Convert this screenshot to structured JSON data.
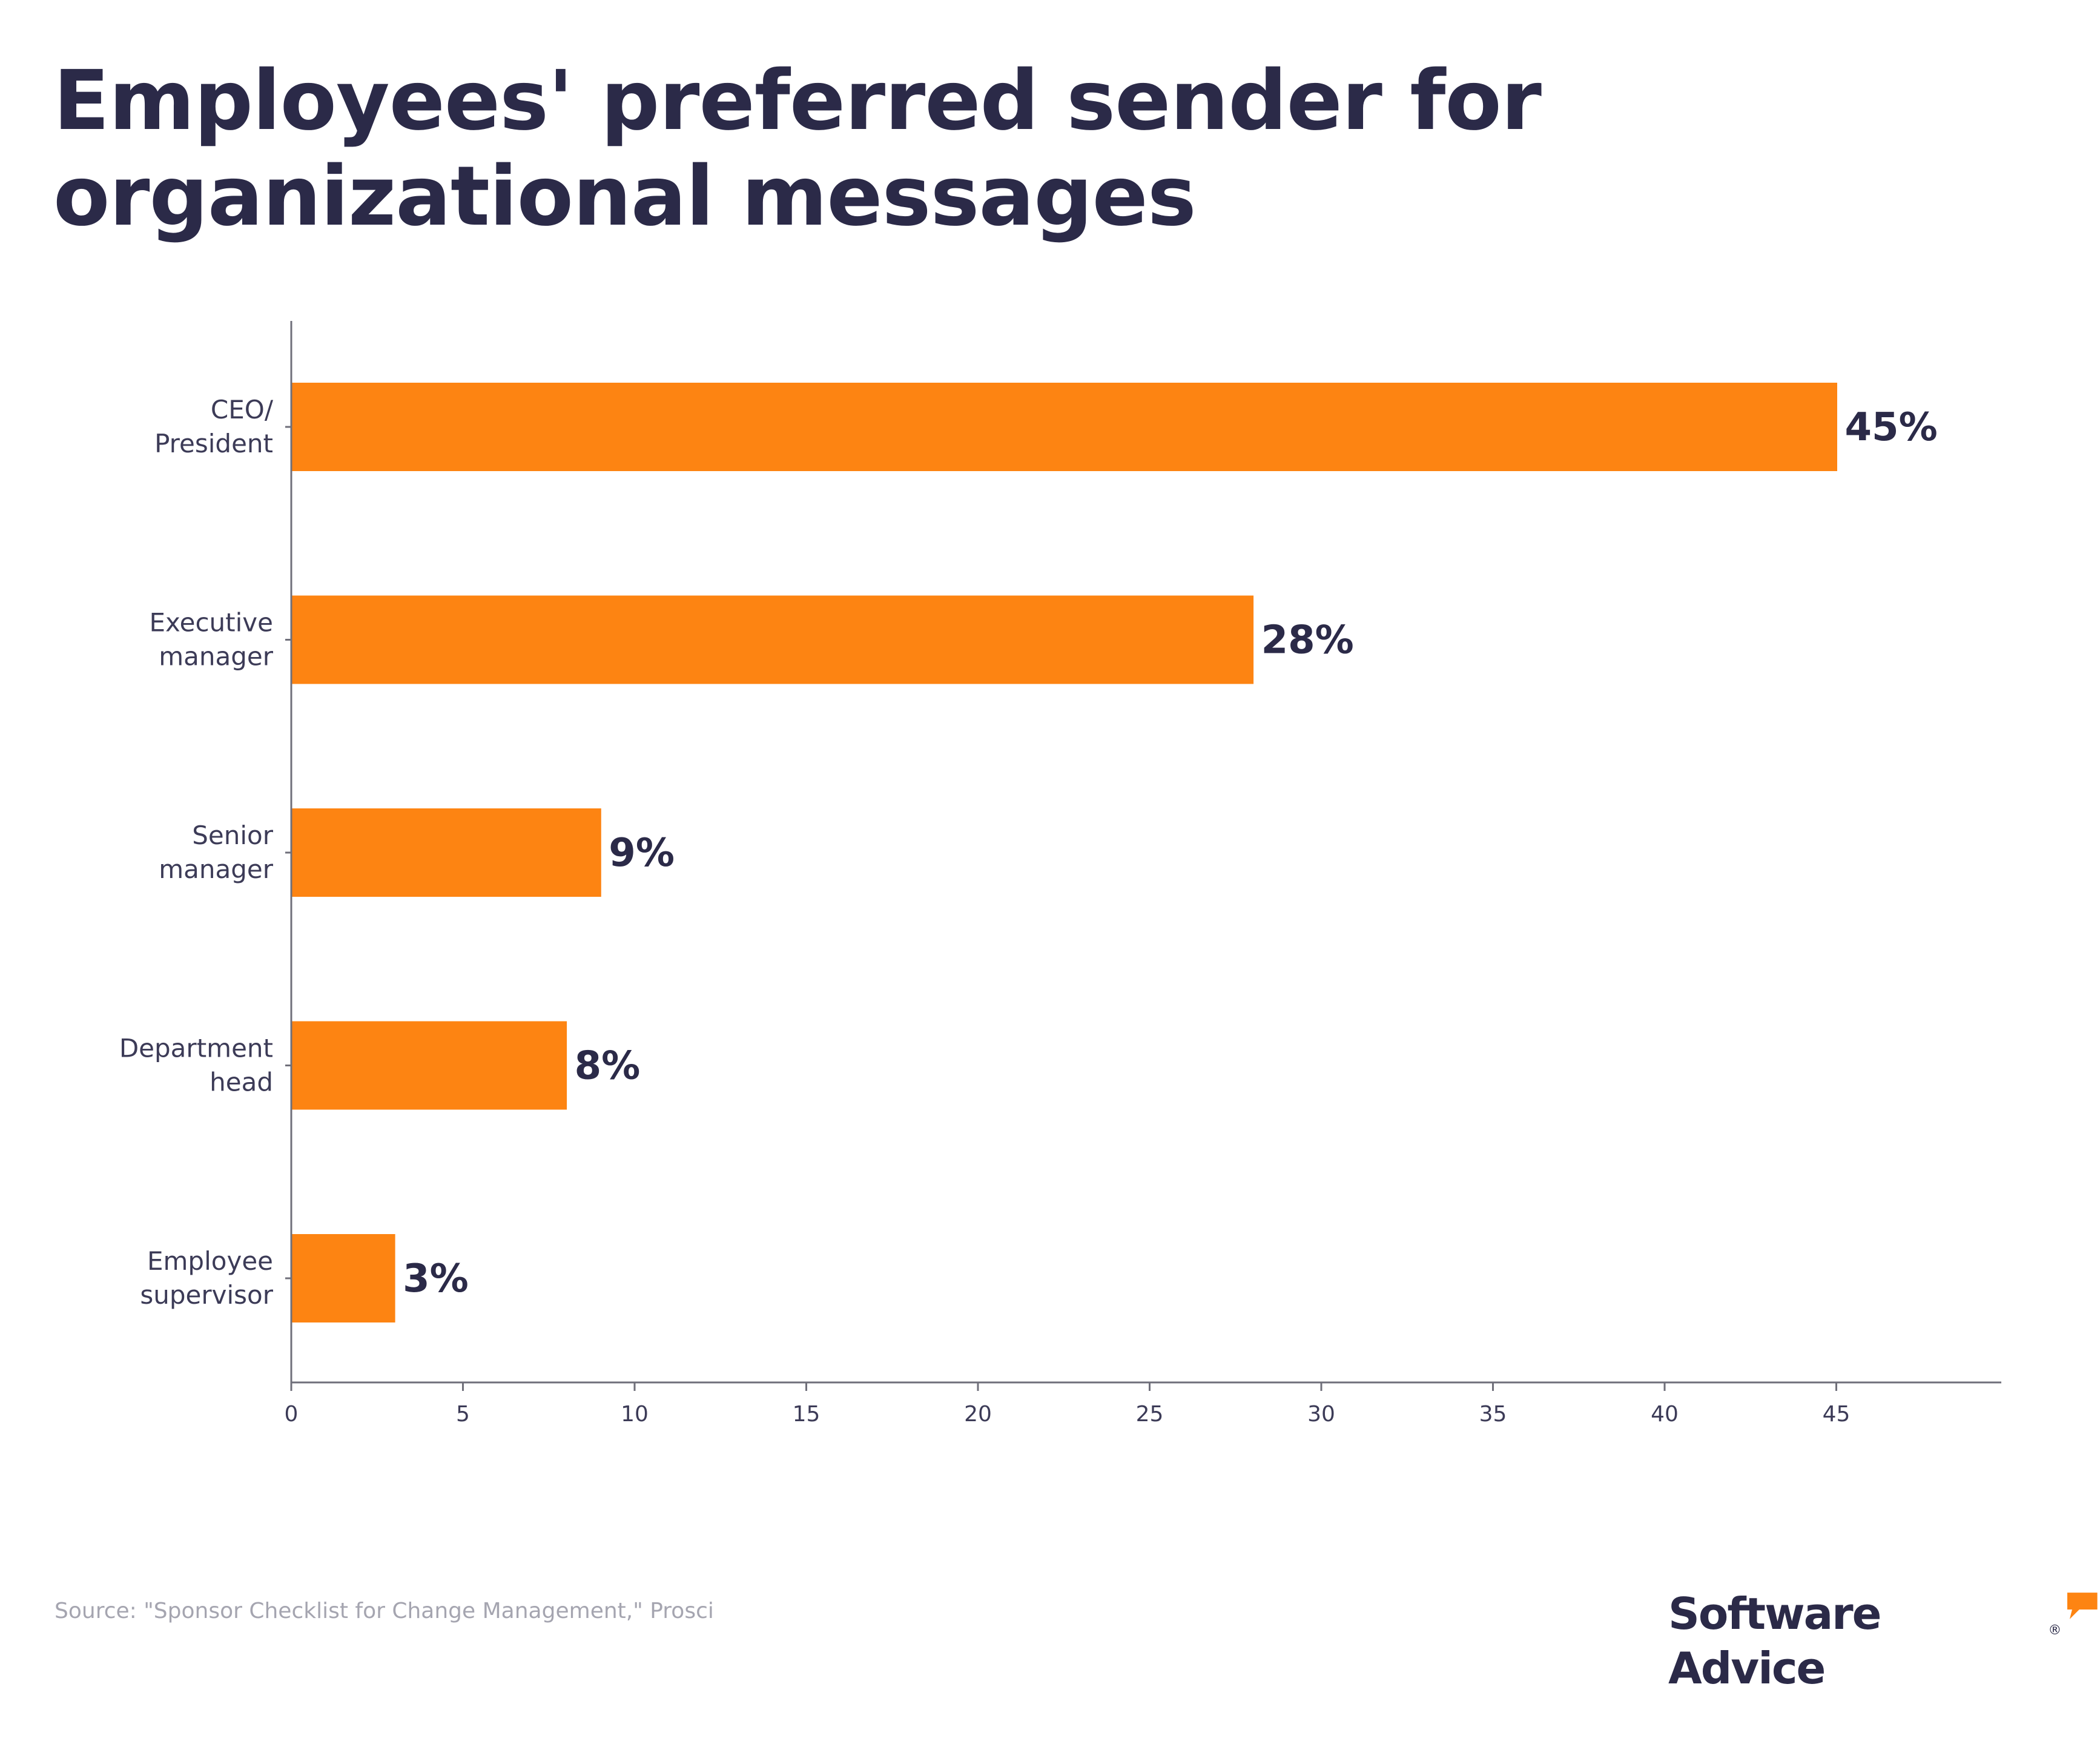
{
  "title": "Employees' preferred sender for organizational messages",
  "chart_data": {
    "type": "bar",
    "orientation": "horizontal",
    "title": "Employees' preferred sender for organizational messages",
    "categories": [
      [
        "CEO/",
        "President"
      ],
      [
        "Executive",
        "manager"
      ],
      [
        "Senior",
        "manager"
      ],
      [
        "Department",
        "head"
      ],
      [
        "Employee",
        "supervisor"
      ]
    ],
    "values": [
      45,
      28,
      9,
      8,
      3
    ],
    "value_labels": [
      "45%",
      "28%",
      "9%",
      "8%",
      "3%"
    ],
    "x_ticks": [
      0,
      5,
      10,
      15,
      20,
      25,
      30,
      35,
      40,
      45
    ],
    "xlim": [
      0,
      50
    ],
    "xlabel": "",
    "ylabel": "",
    "grid": false,
    "bar_color": "#fd8412"
  },
  "source": "Source: \"Sponsor Checklist for Change Management,\" Prosci",
  "logo": {
    "text": "Software Advice",
    "reg": "®",
    "accent_color": "#fd8412"
  },
  "colors": {
    "text_dark": "#2b2a48",
    "axis": "#6f6f7a",
    "bar": "#fd8412"
  }
}
